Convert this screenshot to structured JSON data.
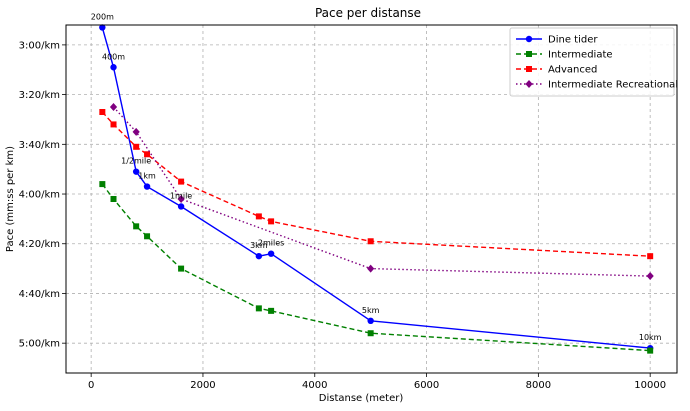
{
  "chart_data": {
    "type": "line",
    "title": "Pace per distanse",
    "xlabel": "Distanse (meter)",
    "ylabel": "Pace (mm:ss per km)",
    "xlim": [
      -450,
      10480
    ],
    "ylim_seconds": [
      172,
      312
    ],
    "y_inverted": true,
    "grid": true,
    "legend_position": "top-right",
    "x_ticks": [
      0,
      2000,
      4000,
      6000,
      8000,
      10000
    ],
    "y_ticks": [
      {
        "seconds": 180,
        "label": "3:00/km"
      },
      {
        "seconds": 200,
        "label": "3:20/km"
      },
      {
        "seconds": 220,
        "label": "3:40/km"
      },
      {
        "seconds": 240,
        "label": "4:00/km"
      },
      {
        "seconds": 260,
        "label": "4:20/km"
      },
      {
        "seconds": 280,
        "label": "4:40/km"
      },
      {
        "seconds": 300,
        "label": "5:00/km"
      }
    ],
    "series": [
      {
        "name": "Dine tider",
        "color": "#0000ff",
        "marker": "circle",
        "line_style": "solid",
        "points": [
          {
            "x": 200,
            "pace_s": 173,
            "label": "200m"
          },
          {
            "x": 400,
            "pace_s": 189,
            "label": "400m"
          },
          {
            "x": 805,
            "pace_s": 231,
            "label": "1/2mile"
          },
          {
            "x": 1000,
            "pace_s": 237,
            "label": "1km"
          },
          {
            "x": 1609,
            "pace_s": 245,
            "label": "1mile"
          },
          {
            "x": 3000,
            "pace_s": 265,
            "label": "3km"
          },
          {
            "x": 3219,
            "pace_s": 264,
            "label": "2miles"
          },
          {
            "x": 5000,
            "pace_s": 291,
            "label": "5km"
          },
          {
            "x": 10000,
            "pace_s": 302,
            "label": "10km"
          }
        ]
      },
      {
        "name": "Intermediate",
        "color": "#008000",
        "marker": "square",
        "line_style": "dashed",
        "points": [
          {
            "x": 200,
            "pace_s": 236
          },
          {
            "x": 400,
            "pace_s": 242
          },
          {
            "x": 805,
            "pace_s": 253
          },
          {
            "x": 1000,
            "pace_s": 257
          },
          {
            "x": 1609,
            "pace_s": 270
          },
          {
            "x": 3000,
            "pace_s": 286
          },
          {
            "x": 3219,
            "pace_s": 287
          },
          {
            "x": 5000,
            "pace_s": 296
          },
          {
            "x": 10000,
            "pace_s": 303
          }
        ]
      },
      {
        "name": "Advanced",
        "color": "#ff0000",
        "marker": "square",
        "line_style": "dashed",
        "points": [
          {
            "x": 200,
            "pace_s": 207
          },
          {
            "x": 400,
            "pace_s": 212
          },
          {
            "x": 805,
            "pace_s": 221
          },
          {
            "x": 1000,
            "pace_s": 224
          },
          {
            "x": 1609,
            "pace_s": 235
          },
          {
            "x": 3000,
            "pace_s": 249
          },
          {
            "x": 3219,
            "pace_s": 251
          },
          {
            "x": 5000,
            "pace_s": 259
          },
          {
            "x": 10000,
            "pace_s": 265
          }
        ]
      },
      {
        "name": "Intermediate Recreational",
        "color": "#800080",
        "marker": "diamond",
        "line_style": "dotted",
        "points": [
          {
            "x": 400,
            "pace_s": 205
          },
          {
            "x": 805,
            "pace_s": 215
          },
          {
            "x": 1609,
            "pace_s": 242
          },
          {
            "x": 5000,
            "pace_s": 270
          },
          {
            "x": 10000,
            "pace_s": 273
          }
        ]
      }
    ]
  }
}
